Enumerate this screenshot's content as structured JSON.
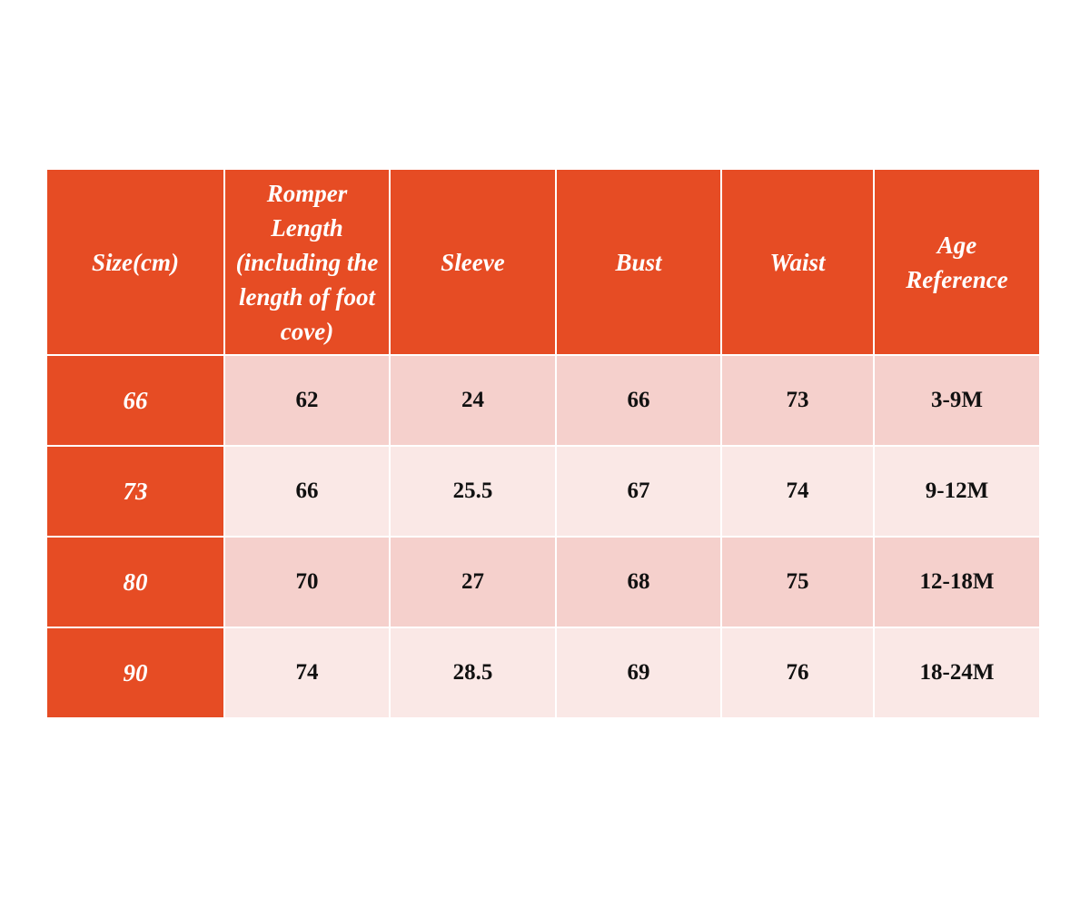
{
  "table": {
    "header": [
      "Size(cm)",
      "Romper Length (including the length of foot cove)",
      "Sleeve",
      "Bust",
      "Waist",
      "Age Reference"
    ],
    "rows": [
      [
        "66",
        "62",
        "24",
        "66",
        "73",
        "3-9M"
      ],
      [
        "73",
        "66",
        "25.5",
        "67",
        "74",
        "9-12M"
      ],
      [
        "80",
        "70",
        "27",
        "68",
        "75",
        "12-18M"
      ],
      [
        "90",
        "74",
        "28.5",
        "69",
        "76",
        "18-24M"
      ]
    ]
  }
}
